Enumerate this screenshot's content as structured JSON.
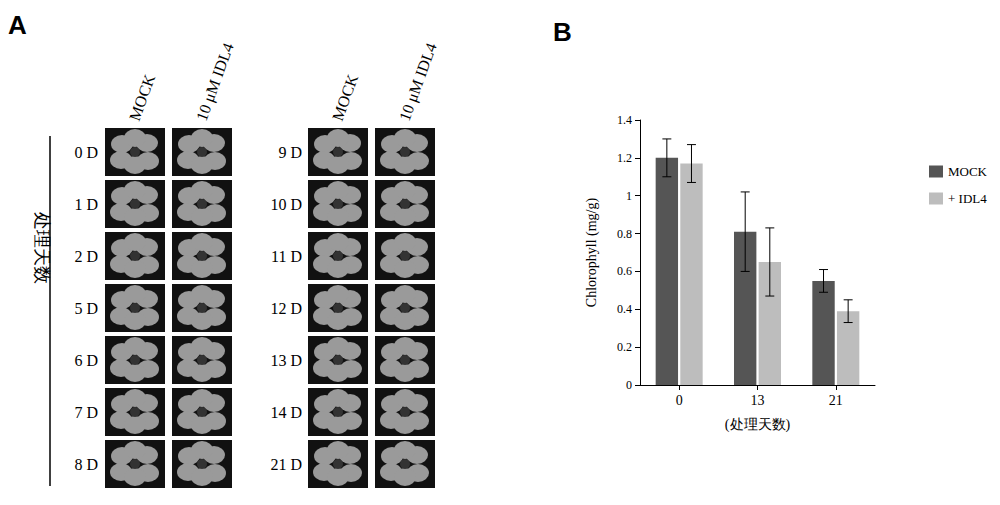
{
  "figure_a": {
    "panel_label": "A",
    "column_labels": [
      "MOCK",
      "10 μM IDL4"
    ],
    "row_axis_label": "处理天数",
    "rows_left": [
      "0 D",
      "1 D",
      "2 D",
      "5 D",
      "6 D",
      "7 D",
      "8 D"
    ],
    "rows_right": [
      "9 D",
      "10 D",
      "11 D",
      "12 D",
      "13 D",
      "14 D",
      "21 D"
    ]
  },
  "chart_data": {
    "type": "bar",
    "panel_label": "B",
    "y_label": "Chlorophyll (mg/g)",
    "x_label": "(处理天数)",
    "categories": [
      "0",
      "13",
      "21"
    ],
    "series": [
      {
        "name": "MOCK",
        "color": "#555555",
        "values": [
          1.2,
          0.81,
          0.55
        ],
        "errors": [
          0.1,
          0.21,
          0.06
        ]
      },
      {
        "name": "+ IDL4",
        "color": "#bdbdbd",
        "values": [
          1.17,
          0.65,
          0.39
        ],
        "errors": [
          0.1,
          0.18,
          0.06
        ]
      }
    ],
    "ylim": [
      0,
      1.4
    ],
    "yticks": [
      0,
      0.2,
      0.4,
      0.6,
      0.8,
      1,
      1.2,
      1.4
    ],
    "grid": false,
    "legend": "right"
  }
}
